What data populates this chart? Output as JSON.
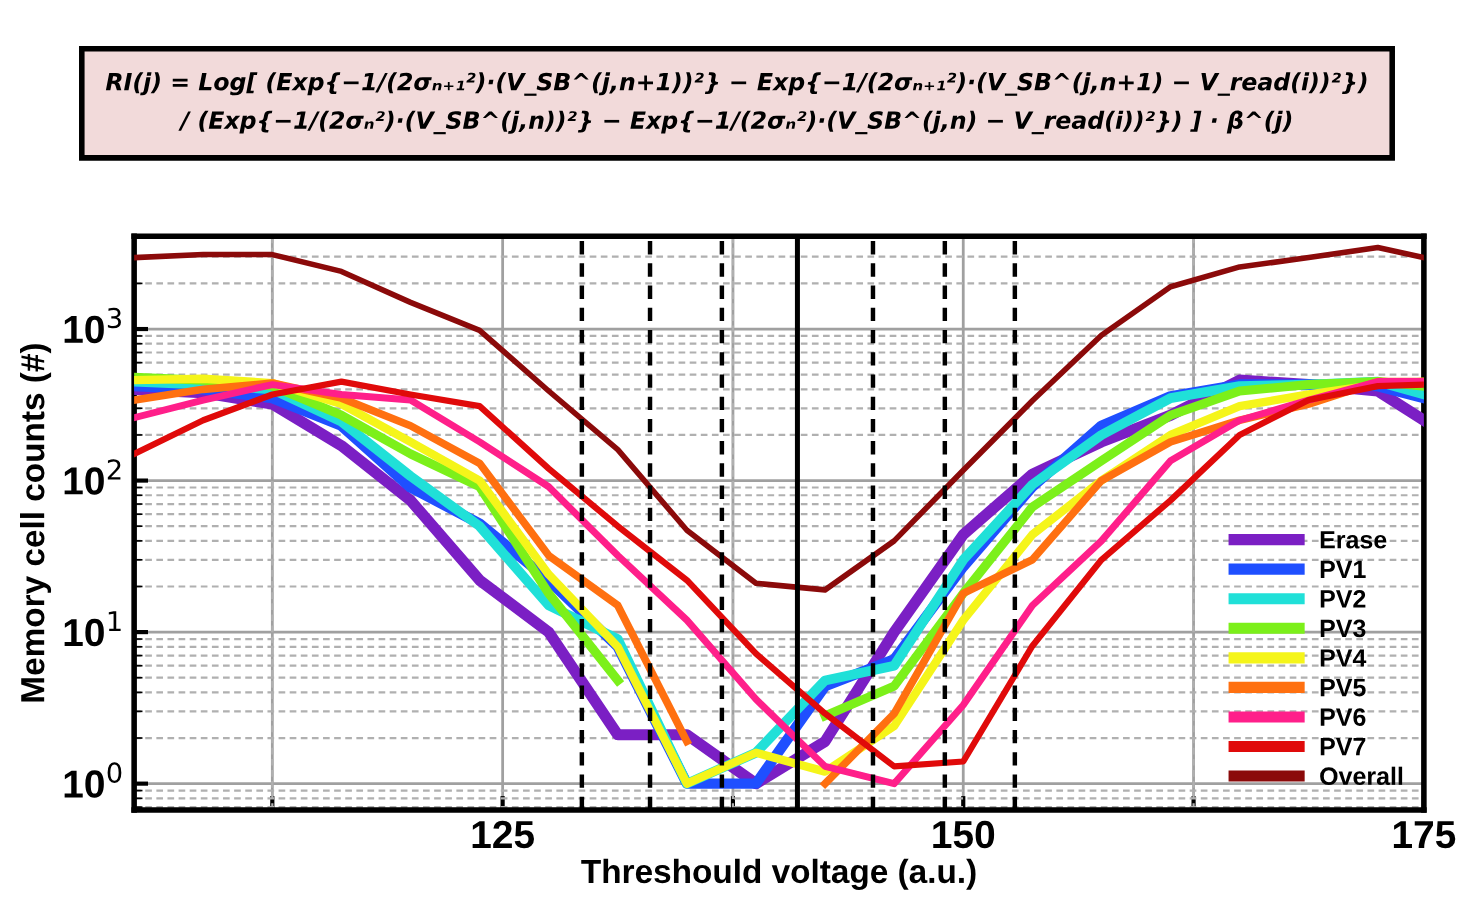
{
  "chart_data": {
    "type": "line",
    "annotations": [
      "RI(j) = Log[ (Exp{−1/(2σₙ₊₁²)·(V_SB^(j,n+1))²} − Exp{−1/(2σₙ₊₁²)·(V_SB^(j,n+1) − V_read(i))²})\n/ (Exp{−1/(2σₙ²)·(V_SB^(j,n))²} − Exp{−1/(2σₙ²)·(V_SB^(j,n) − V_read(i))²}) ] · β^(j)"
    ],
    "xlabel": "Threshould voltage (a.u.)",
    "ylabel": "Memory cell counts (#)",
    "x": [
      105,
      108.75,
      112.5,
      116.25,
      120,
      123.75,
      127.5,
      131.25,
      135,
      138.75,
      142.5,
      146.25,
      150,
      153.75,
      157.5,
      161.25,
      165,
      168.75,
      172.5,
      175
    ],
    "series": [
      {
        "name": "Erase",
        "color": "#7b1fc4",
        "values": [
          400,
          380,
          320,
          170,
          74,
          22,
          10,
          2.1,
          2.1,
          1,
          1.9,
          10,
          44,
          110,
          180,
          270,
          460,
          430,
          390,
          250
        ]
      },
      {
        "name": "PV1",
        "color": "#1f4fff",
        "values": [
          420,
          400,
          350,
          230,
          90,
          52,
          22,
          8,
          1,
          1,
          4.4,
          6.6,
          27,
          91,
          230,
          360,
          430,
          430,
          420,
          350
        ]
      },
      {
        "name": "PV2",
        "color": "#20e0d8",
        "values": [
          450,
          430,
          400,
          245,
          107,
          50,
          15,
          9,
          1,
          1.6,
          4.8,
          6,
          30,
          94,
          200,
          350,
          420,
          430,
          450,
          370
        ]
      },
      {
        "name": "PV3",
        "color": "#7cf01a",
        "values": [
          480,
          460,
          420,
          270,
          150,
          91,
          18,
          4.8,
          null,
          null,
          2.8,
          4.4,
          18,
          67,
          135,
          270,
          390,
          430,
          450,
          420
        ]
      },
      {
        "name": "PV4",
        "color": "#f5f51a",
        "values": [
          460,
          470,
          440,
          320,
          180,
          100,
          24,
          8,
          1,
          1.6,
          1.2,
          2.4,
          12,
          44,
          100,
          200,
          310,
          370,
          430,
          450
        ]
      },
      {
        "name": "PV5",
        "color": "#ff7010",
        "values": [
          340,
          400,
          440,
          350,
          230,
          130,
          32,
          15,
          1.9,
          null,
          1,
          2.9,
          18,
          30,
          100,
          180,
          250,
          320,
          450,
          450
        ]
      },
      {
        "name": "PV6",
        "color": "#ff1f8a",
        "values": [
          260,
          340,
          430,
          370,
          340,
          180,
          91,
          32,
          12,
          3.6,
          1.3,
          1,
          3.3,
          15,
          40,
          135,
          250,
          340,
          450,
          450
        ]
      },
      {
        "name": "PV7",
        "color": "#e00a0a",
        "values": [
          150,
          250,
          370,
          450,
          370,
          310,
          120,
          50,
          22,
          7.2,
          2.9,
          1.3,
          1.4,
          8.1,
          30,
          74,
          200,
          340,
          420,
          430
        ]
      },
      {
        "name": "Overall",
        "color": "#8b0a0a",
        "values": [
          2960,
          3100,
          3100,
          2400,
          1500,
          980,
          390,
          160,
          47,
          21,
          19,
          40,
          117,
          336,
          910,
          1900,
          2570,
          2960,
          3450,
          2960
        ]
      }
    ],
    "log": "y",
    "xlim": [
      105,
      175
    ],
    "xticks": [
      {
        "value": 112.5,
        "label": null
      },
      125,
      {
        "value": 137.5,
        "label": null
      },
      150,
      {
        "value": 162.5,
        "label": null
      },
      175
    ],
    "ylim": [
      0.67,
      4100
    ],
    "yticks": [
      {
        "value": 1,
        "label": "10$^{0}$"
      },
      {
        "value": 10,
        "label": "10$^{1}$"
      },
      {
        "value": 100,
        "label": "10$^{2}$"
      },
      {
        "value": 1000,
        "label": "10$^{3}$"
      }
    ],
    "ref_lines": [
      {
        "axis": "x",
        "value": 129.3,
        "line_style": "dashed",
        "color": "#000000"
      },
      {
        "axis": "x",
        "value": 133.0,
        "line_style": "dashed",
        "color": "#000000"
      },
      {
        "axis": "x",
        "value": 136.9,
        "line_style": "dashed",
        "color": "#000000"
      },
      {
        "axis": "x",
        "value": 141.0,
        "line_style": "solid",
        "color": "#000000"
      },
      {
        "axis": "x",
        "value": 145.1,
        "line_style": "dashed",
        "color": "#000000"
      },
      {
        "axis": "x",
        "value": 149.0,
        "line_style": "dashed",
        "color": "#000000"
      },
      {
        "axis": "x",
        "value": 152.8,
        "line_style": "dashed",
        "color": "#000000"
      }
    ],
    "grid": true,
    "legend": "lower right",
    "marker": "none",
    "line_style": "solid"
  }
}
